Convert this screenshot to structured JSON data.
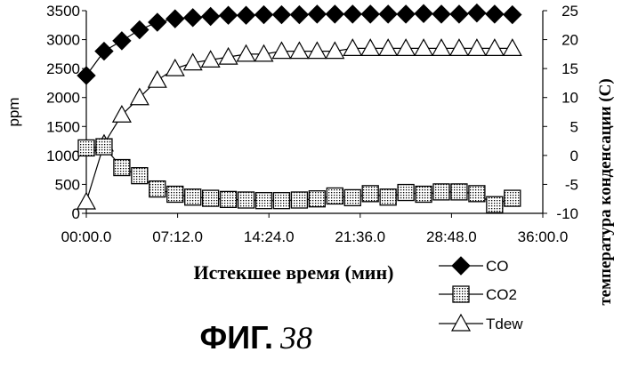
{
  "chart_data": {
    "type": "line",
    "xlabel": "Истекшее время (мин)",
    "ylabel": "ppm",
    "y2label": "температура конденсации (С)",
    "x_ticks": [
      "00:00.0",
      "07:12.0",
      "14:24.0",
      "21:36.0",
      "28:48.0",
      "36:00.0"
    ],
    "xlim": [
      0,
      36
    ],
    "ylim": [
      0,
      3500
    ],
    "y_ticks": [
      0,
      500,
      1000,
      1500,
      2000,
      2500,
      3000,
      3500
    ],
    "y2lim": [
      -10,
      25
    ],
    "y2_ticks": [
      -10,
      -5,
      0,
      5,
      10,
      15,
      20,
      25
    ],
    "grid": false,
    "legend": "bottom-right",
    "x": [
      0,
      1.4,
      2.8,
      4.2,
      5.6,
      7.0,
      8.4,
      9.8,
      11.2,
      12.6,
      14.0,
      15.4,
      16.8,
      18.2,
      19.6,
      21.0,
      22.4,
      23.8,
      25.2,
      26.6,
      28.0,
      29.4,
      30.8,
      32.2,
      33.6
    ],
    "series": [
      {
        "name": "CO",
        "axis": "left",
        "marker": "diamond",
        "values": [
          2380,
          2800,
          2980,
          3170,
          3300,
          3360,
          3380,
          3400,
          3420,
          3420,
          3430,
          3430,
          3430,
          3440,
          3440,
          3440,
          3440,
          3440,
          3440,
          3450,
          3440,
          3440,
          3460,
          3440,
          3430
        ]
      },
      {
        "name": "CO2",
        "axis": "left",
        "marker": "square",
        "values": [
          1130,
          1150,
          790,
          650,
          420,
          330,
          280,
          260,
          240,
          230,
          220,
          220,
          230,
          250,
          300,
          270,
          340,
          280,
          360,
          330,
          370,
          370,
          340,
          150,
          260
        ]
      },
      {
        "name": "Tdew",
        "axis": "right",
        "marker": "triangle",
        "values": [
          -8,
          2,
          7,
          10,
          13,
          15,
          16,
          16.5,
          17,
          17.5,
          17.5,
          18,
          18,
          18,
          18,
          18.5,
          18.5,
          18.5,
          18.5,
          18.5,
          18.5,
          18.5,
          18.5,
          18.5,
          18.5
        ]
      }
    ]
  },
  "caption": {
    "main": "ФИГ.",
    "number": "38"
  }
}
